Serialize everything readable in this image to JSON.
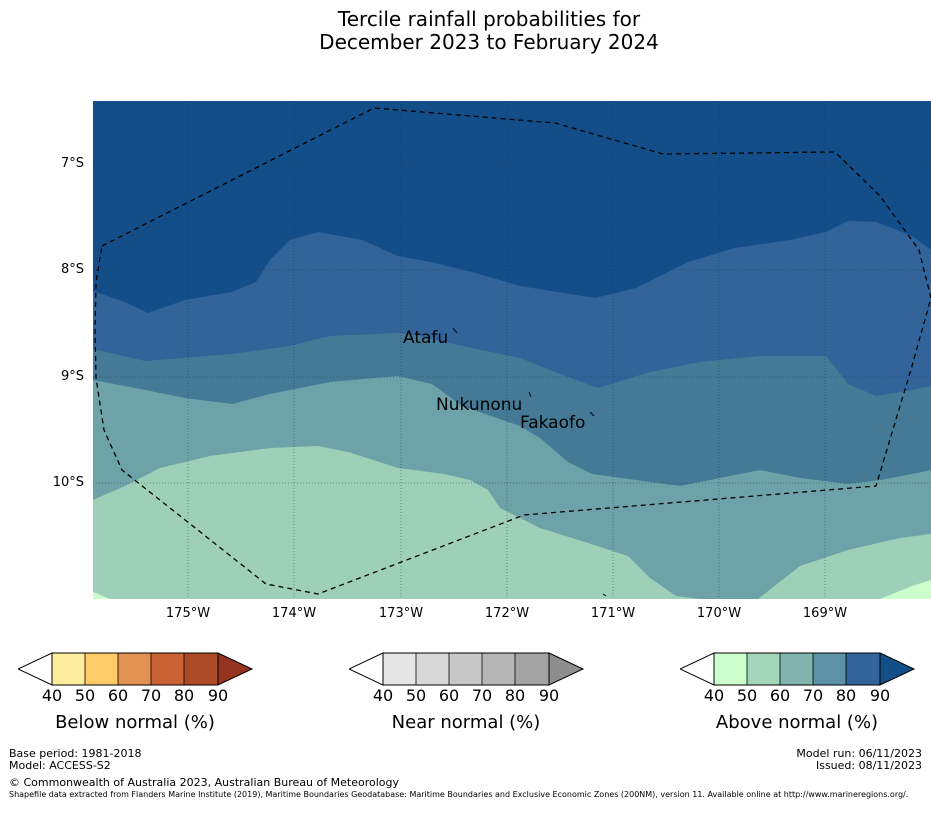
{
  "title": {
    "line1": "Tercile rainfall probabilities for",
    "line2": "December 2023 to February 2024"
  },
  "map": {
    "lat_labels": [
      "7°S",
      "8°S",
      "9°S",
      "10°S"
    ],
    "lon_labels": [
      "175°W",
      "174°W",
      "173°W",
      "172°W",
      "171°W",
      "170°W",
      "169°W"
    ],
    "islands": [
      {
        "name": "Atafu"
      },
      {
        "name": "Nukunonu"
      },
      {
        "name": "Fakaofo"
      }
    ],
    "colors": {
      "above_50": "#9ed0b8",
      "above_60": "#6da3a8",
      "above_70": "#447a96",
      "above_80": "#32649a",
      "above_90": "#134e89",
      "above_40": "#ccffcc"
    }
  },
  "colorbars": [
    {
      "name": "below",
      "label": "Below normal (%)",
      "ticks": [
        "40",
        "50",
        "60",
        "70",
        "80",
        "90"
      ],
      "colors": [
        "#ffed9e",
        "#fecc66",
        "#e29250",
        "#ca6234",
        "#ad4a28",
        "#953320"
      ]
    },
    {
      "name": "near",
      "label": "Near normal (%)",
      "ticks": [
        "40",
        "50",
        "60",
        "70",
        "80",
        "90"
      ],
      "colors": [
        "#e5e5e5",
        "#d8d8d8",
        "#c8c8c8",
        "#b6b6b6",
        "#a3a3a3",
        "#8e8e8e"
      ]
    },
    {
      "name": "above",
      "label": "Above normal (%)",
      "ticks": [
        "40",
        "50",
        "60",
        "70",
        "80",
        "90"
      ],
      "colors": [
        "#ccffcc",
        "#a3d5bb",
        "#80b4ad",
        "#5b92a5",
        "#32649a",
        "#134e89"
      ]
    }
  ],
  "footer": {
    "base_period": "Base period: 1981-2018",
    "model": "Model: ACCESS-S2",
    "copyright": "© Commonwealth of Australia 2023, Australian Bureau of Meteorology",
    "shapefile": "Shapefile data extracted from Flanders Marine Institute (2019), Maritime Boundaries Geodatabase: Maritime Boundaries and Exclusive Economic Zones (200NM), version 11. Available online at http://www.marineregions.org/.",
    "model_run": "Model run: 06/11/2023",
    "issued": "Issued: 08/11/2023"
  }
}
